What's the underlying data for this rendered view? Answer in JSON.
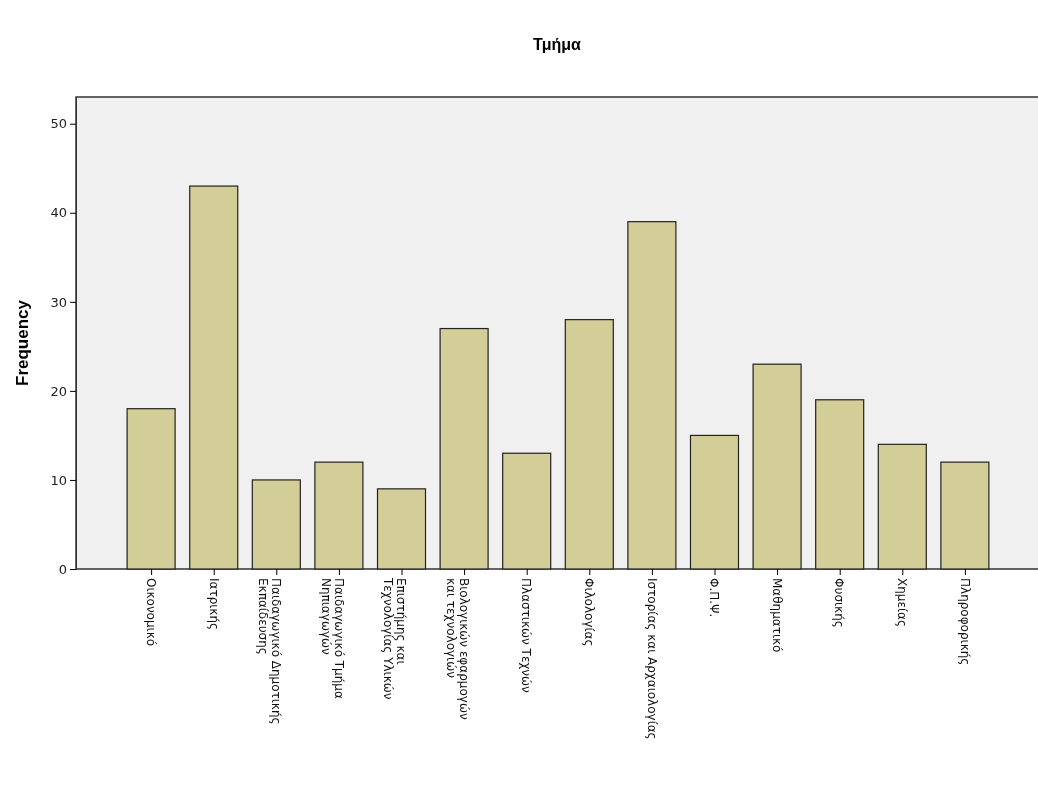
{
  "chart_data": {
    "type": "bar",
    "title": "Τμήμα",
    "ylabel": "Frequency",
    "categories": [
      "Οικονομικό",
      "Ιατρικής",
      "Παιδαγωγικό Δημοτικής\nΕκπαίδευσης",
      "Παιδαγωγικό Τμήμα\nΝηπιαγωγών",
      "Επιστήμης και\nΤεχνολογίας Υλικών",
      "Βιολογικών εφαρμογών\nκαι τεχνολογιών",
      "Πλαστικών Τεχνών",
      "Φιλολογίας",
      "Ιστορίας και Αρχαιολογίας",
      "Φ.Π.Ψ.",
      "Μαθηματικό",
      "Φυσικής",
      "Χημείας",
      "Πληροφορικής"
    ],
    "values": [
      18,
      43,
      10,
      12,
      9,
      27,
      13,
      28,
      39,
      15,
      23,
      19,
      14,
      12
    ],
    "color": "#d3ce97",
    "ylim": [
      0,
      53
    ],
    "yticks": [
      0,
      10,
      20,
      30,
      40,
      50
    ],
    "grid": false
  }
}
